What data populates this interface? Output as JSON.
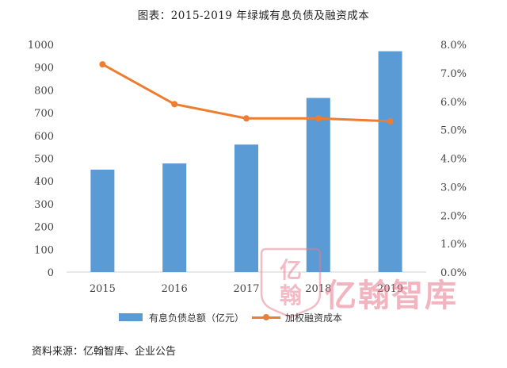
{
  "title": "图表：2015-2019 年绿城有息负债及融资成本",
  "chart_data": {
    "type": "bar",
    "categories": [
      "2015",
      "2016",
      "2017",
      "2018",
      "2019"
    ],
    "series": [
      {
        "name": "有息负债总额（亿元）",
        "type": "bar",
        "axis": "left",
        "values": [
          450,
          477,
          560,
          765,
          970
        ]
      },
      {
        "name": "加权融资成本",
        "type": "line",
        "axis": "right",
        "values": [
          7.3,
          5.9,
          5.4,
          5.4,
          5.3
        ]
      }
    ],
    "y_left": {
      "min": 0,
      "max": 1000,
      "ticks": [
        "0",
        "100",
        "200",
        "300",
        "400",
        "500",
        "600",
        "700",
        "800",
        "900",
        "1000"
      ]
    },
    "y_right": {
      "min": 0,
      "max": 8,
      "ticks": [
        "0.0%",
        "1.0%",
        "2.0%",
        "3.0%",
        "4.0%",
        "5.0%",
        "6.0%",
        "7.0%",
        "8.0%"
      ]
    },
    "grid": false,
    "legend_position": "bottom"
  },
  "colors": {
    "bar": "#5b9bd5",
    "line": "#ed7d31",
    "axis": "#d0d0d0"
  },
  "watermark": {
    "text": "亿翰智库",
    "logo_text": "亿翰"
  },
  "source": "资料来源：亿翰智库、企业公告"
}
